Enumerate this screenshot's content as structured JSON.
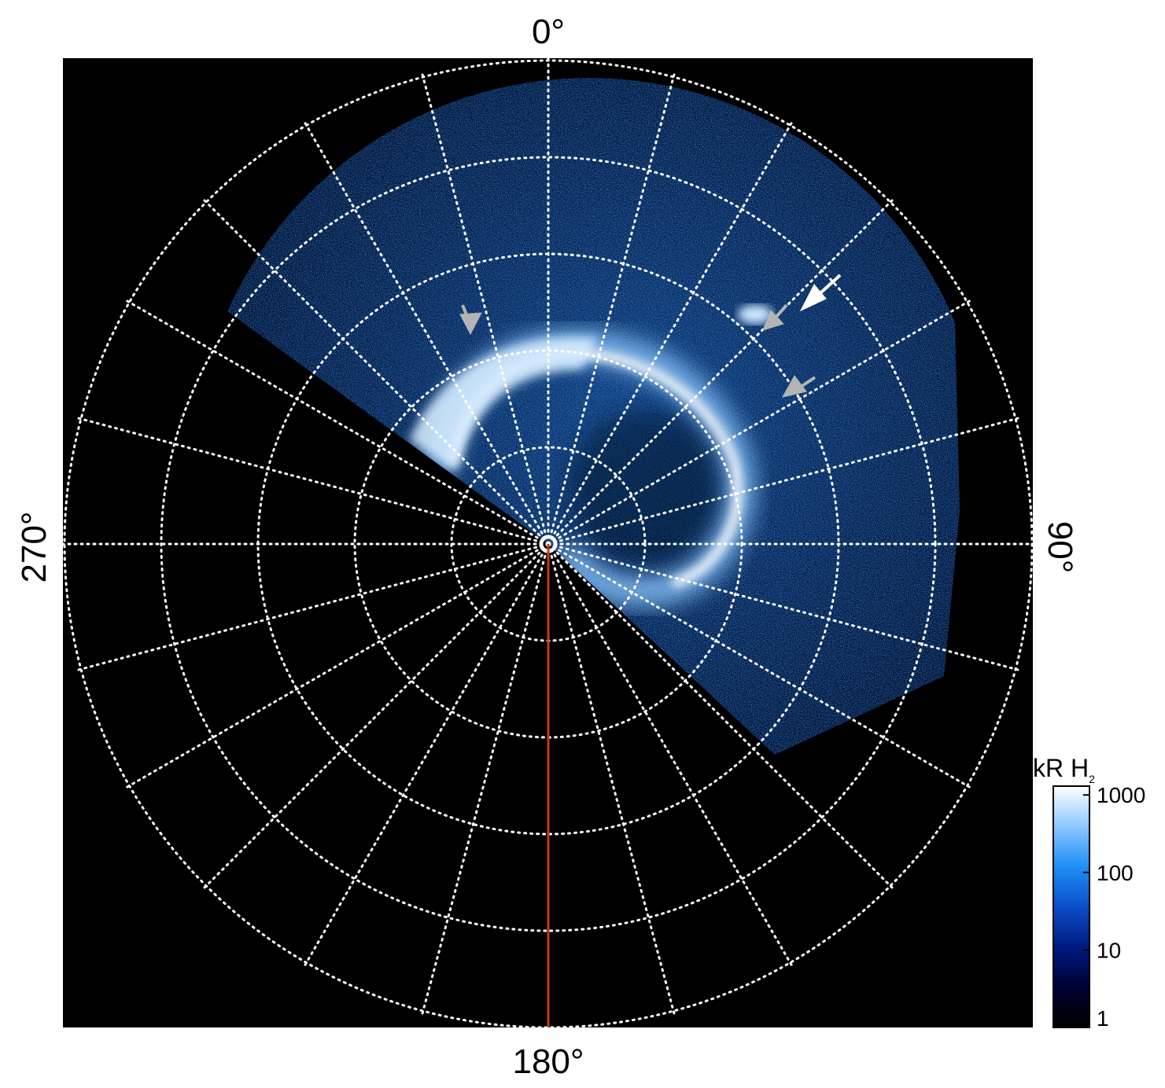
{
  "projection_labels": {
    "top": "0°",
    "bottom": "180°",
    "left": "270°",
    "right": "90°"
  },
  "colorbar": {
    "title_main": "kR H",
    "title_sub": "2",
    "ticks": [
      "1000",
      "100",
      "10",
      "1"
    ],
    "colors": [
      "#000000",
      "#000033",
      "#001a80",
      "#0b4fc8",
      "#1f8ef5",
      "#8cc8ff",
      "#ffffff"
    ]
  },
  "colors": {
    "background_plot": "#000000",
    "grid": "#ffffff",
    "meridian_line": "#c83a10",
    "arrow_white": "#ffffff",
    "arrow_gray": "#b4b4b4"
  }
}
